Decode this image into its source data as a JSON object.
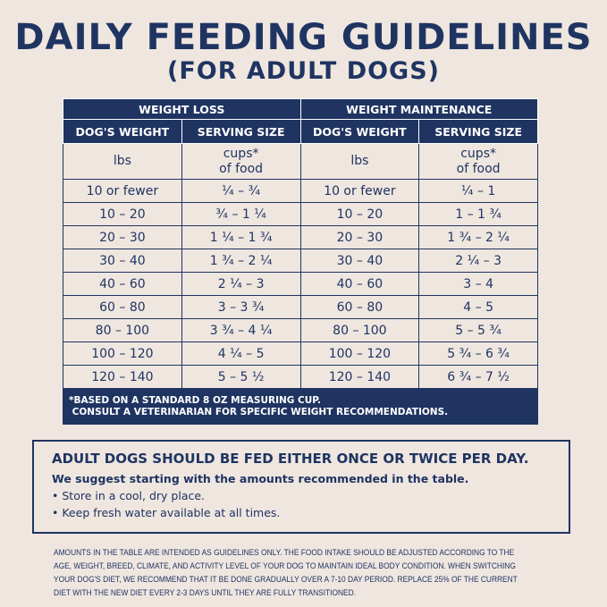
{
  "title": "DAILY FEEDING GUIDELINES",
  "subtitle": "(FOR ADULT DOGS)",
  "table": {
    "groups": [
      "WEIGHT LOSS",
      "WEIGHT MAINTENANCE"
    ],
    "columns": [
      "DOG'S WEIGHT",
      "SERVING SIZE",
      "DOG'S WEIGHT",
      "SERVING SIZE"
    ],
    "units": [
      "lbs",
      "cups*",
      "of food",
      "lbs",
      "cups*",
      "of food"
    ],
    "rows": [
      [
        "10 or fewer",
        "¼ – ¾",
        "10 or fewer",
        "¼ – 1"
      ],
      [
        "10 – 20",
        "¾ – 1 ¼",
        "10 – 20",
        "1 – 1 ¾"
      ],
      [
        "20 – 30",
        "1 ¼ – 1 ¾",
        "20 – 30",
        "1 ¾ – 2 ¼"
      ],
      [
        "30 – 40",
        "1 ¾ – 2 ¼",
        "30 – 40",
        "2 ¼ – 3"
      ],
      [
        "40 – 60",
        "2 ¼ – 3",
        "40 – 60",
        "3 – 4"
      ],
      [
        "60 – 80",
        "3 – 3 ¾",
        "60 – 80",
        "4 – 5"
      ],
      [
        "80 – 100",
        "3 ¾ – 4 ¼",
        "80 – 100",
        "5 – 5 ¾"
      ],
      [
        "100 – 120",
        "4 ¼ – 5",
        "100 – 120",
        "5 ¾ – 6 ¾"
      ],
      [
        "120 – 140",
        "5 – 5 ½",
        "120 – 140",
        "6 ¾ – 7 ½"
      ]
    ],
    "footnote1": "*BASED ON A STANDARD 8 OZ MEASURING CUP.",
    "footnote2": "CONSULT A VETERINARIAN FOR SPECIFIC WEIGHT RECOMMENDATIONS."
  },
  "box": {
    "heading": "ADULT DOGS SHOULD BE FED EITHER ONCE OR TWICE PER DAY.",
    "intro": "We suggest starting with the amounts recommended in the table.",
    "bullets": [
      "Store in a cool, dry place.",
      "Keep fresh water available at all times."
    ]
  },
  "disclaimer": "AMOUNTS IN THE TABLE ARE INTENDED AS GUIDELINES ONLY. THE FOOD INTAKE SHOULD BE ADJUSTED ACCORDING TO THE AGE, WEIGHT, BREED, CLIMATE, AND ACTIVITY LEVEL OF YOUR DOG TO MAINTAIN IDEAL BODY CONDITION. WHEN SWITCHING YOUR DOG'S DIET, WE RECOMMEND THAT IT BE DONE GRADUALLY OVER A 7-10 DAY PERIOD. REPLACE 25% OF THE CURRENT DIET WITH THE NEW DIET EVERY 2-3 DAYS UNTIL THEY ARE FULLY TRANSITIONED.",
  "colors": {
    "navy": "#1f3461",
    "background": "#efe6e0"
  }
}
